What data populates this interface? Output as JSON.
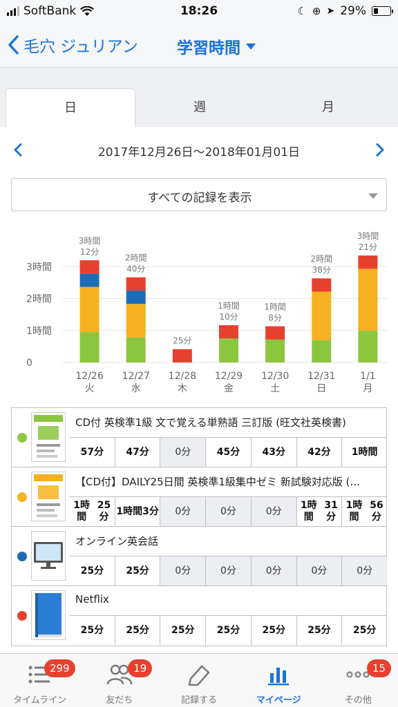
{
  "status_bar": {
    "carrier": "SoftBank",
    "time": "18:26",
    "battery": "29%",
    "battery_level": 0.29
  },
  "nav": {
    "back_label": "毛穴 ジュリアン",
    "title": "学習時間"
  },
  "tabs": [
    {
      "label": "日"
    },
    {
      "label": "週"
    },
    {
      "label": "月"
    }
  ],
  "date_range": "2017年12月26日〜2018年01月01日",
  "filter": {
    "value": "すべての記録を表示"
  },
  "colors": {
    "green": "#8cc63f",
    "yellow": "#f5b120",
    "blue": "#1c6db5",
    "red": "#e8402f",
    "accent": "#1a73d9"
  },
  "chart_data": {
    "type": "bar",
    "stacked": true,
    "categories": [
      "12/26\n火",
      "12/27\n水",
      "12/28\n木",
      "12/29\n金",
      "12/30\n土",
      "12/31\n日",
      "1/1\n月"
    ],
    "category_dates": [
      "12/26",
      "12/27",
      "12/28",
      "12/29",
      "12/30",
      "12/31",
      "1/1"
    ],
    "category_days": [
      "火",
      "水",
      "木",
      "金",
      "土",
      "日",
      "月"
    ],
    "series": [
      {
        "color": "#8cc63f",
        "values": [
          57,
          47,
          0,
          45,
          43,
          42,
          60
        ]
      },
      {
        "color": "#f5b120",
        "values": [
          85,
          63,
          0,
          0,
          0,
          91,
          116
        ]
      },
      {
        "color": "#1c6db5",
        "values": [
          25,
          25,
          0,
          0,
          0,
          0,
          0
        ]
      },
      {
        "color": "#e8402f",
        "values": [
          25,
          25,
          25,
          25,
          25,
          25,
          25
        ]
      }
    ],
    "totals_label_line1": [
      "3時間",
      "2時間",
      "",
      "1時間",
      "1時間",
      "2時間",
      "3時間"
    ],
    "totals_label_line2": [
      "12分",
      "40分",
      "25分",
      "10分",
      "8分",
      "38分",
      "21分"
    ],
    "yticks": [
      "0",
      "1時間",
      "2時間",
      "3時間"
    ],
    "ylim": [
      0,
      240
    ],
    "grid": true
  },
  "records": [
    {
      "name": "CD付 英検準1級 文で覚える単熟語 三訂版 (旺文社英検書)",
      "dot_color": "#8cc63f",
      "icon": "book-cover-icon",
      "cells": [
        [
          "57分"
        ],
        [
          "47分"
        ],
        [
          "0分"
        ],
        [
          "45分"
        ],
        [
          "43分"
        ],
        [
          "42分"
        ],
        [
          "1時間"
        ]
      ]
    },
    {
      "name": "【CD付】DAILY25日間 英検準1級集中ゼミ 新試験対応版 (…",
      "dot_color": "#f5b120",
      "icon": "book-cover-icon",
      "cells": [
        [
          "1時間",
          "25分"
        ],
        [
          "1時間",
          "3分"
        ],
        [
          "0分"
        ],
        [
          "0分"
        ],
        [
          "0分"
        ],
        [
          "1時間",
          "31分"
        ],
        [
          "1時間",
          "56分"
        ]
      ]
    },
    {
      "name": "オンライン英会話",
      "dot_color": "#1c6db5",
      "icon": "monitor-icon",
      "cells": [
        [
          "25分"
        ],
        [
          "25分"
        ],
        [
          "0分"
        ],
        [
          "0分"
        ],
        [
          "0分"
        ],
        [
          "0分"
        ],
        [
          "0分"
        ]
      ]
    },
    {
      "name": "Netflix",
      "dot_color": "#e8402f",
      "icon": "blue-book-icon",
      "cells": [
        [
          "25分"
        ],
        [
          "25分"
        ],
        [
          "25分"
        ],
        [
          "25分"
        ],
        [
          "25分"
        ],
        [
          "25分"
        ],
        [
          "25分"
        ]
      ]
    }
  ],
  "tabbar": [
    {
      "label": "タイムライン",
      "badge": "299",
      "icon": "list-icon"
    },
    {
      "label": "友だち",
      "badge": "19",
      "icon": "friends-icon"
    },
    {
      "label": "記録する",
      "badge": "",
      "icon": "pencil-icon"
    },
    {
      "label": "マイページ",
      "badge": "",
      "icon": "bar-chart-icon",
      "active": true
    },
    {
      "label": "その他",
      "badge": "15",
      "icon": "more-icon"
    }
  ]
}
